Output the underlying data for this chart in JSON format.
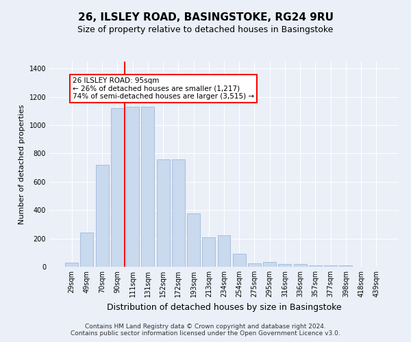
{
  "title_line1": "26, ILSLEY ROAD, BASINGSTOKE, RG24 9RU",
  "title_line2": "Size of property relative to detached houses in Basingstoke",
  "xlabel": "Distribution of detached houses by size in Basingstoke",
  "ylabel": "Number of detached properties",
  "categories": [
    "29sqm",
    "49sqm",
    "70sqm",
    "90sqm",
    "111sqm",
    "131sqm",
    "152sqm",
    "172sqm",
    "193sqm",
    "213sqm",
    "234sqm",
    "254sqm",
    "275sqm",
    "295sqm",
    "316sqm",
    "336sqm",
    "357sqm",
    "377sqm",
    "398sqm",
    "418sqm",
    "439sqm"
  ],
  "values": [
    30,
    240,
    720,
    1120,
    1130,
    1130,
    760,
    760,
    375,
    210,
    220,
    90,
    25,
    35,
    20,
    18,
    12,
    8,
    8,
    2,
    0
  ],
  "bar_color": "#c9d9ee",
  "bar_edge_color": "#a0b8d8",
  "vline_x": 3.5,
  "vline_color": "red",
  "annotation_text": "26 ILSLEY ROAD: 95sqm\n← 26% of detached houses are smaller (1,217)\n74% of semi-detached houses are larger (3,515) →",
  "annotation_box_color": "white",
  "annotation_box_edge_color": "red",
  "ylim": [
    0,
    1450
  ],
  "yticks": [
    0,
    200,
    400,
    600,
    800,
    1000,
    1200,
    1400
  ],
  "footer_line1": "Contains HM Land Registry data © Crown copyright and database right 2024.",
  "footer_line2": "Contains public sector information licensed under the Open Government Licence v3.0.",
  "background_color": "#eaeff8",
  "plot_background_color": "#eaeff8",
  "title1_fontsize": 11,
  "title2_fontsize": 9,
  "xlabel_fontsize": 9,
  "ylabel_fontsize": 8,
  "tick_fontsize": 7,
  "annotation_fontsize": 7.5,
  "footer_fontsize": 6.5
}
